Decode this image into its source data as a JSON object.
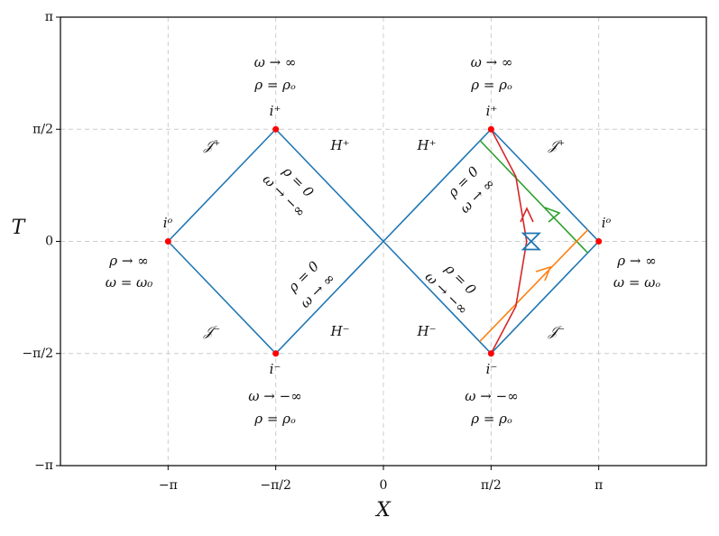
{
  "chart_data": {
    "type": "line",
    "xlabel": "X",
    "ylabel": "T",
    "xlim": [
      -4.712,
      4.712
    ],
    "ylim": [
      -3.1416,
      3.1416
    ],
    "xticks": [
      {
        "value": -3.1416,
        "label": "−π"
      },
      {
        "value": -1.5708,
        "label": "−π/2"
      },
      0,
      {
        "value": 1.5708,
        "label": "π/2"
      },
      {
        "value": 3.1416,
        "label": "π"
      }
    ],
    "yticks": [
      {
        "value": -3.1416,
        "label": "−π"
      },
      {
        "value": -1.5708,
        "label": "−π/2"
      },
      0,
      {
        "value": 1.5708,
        "label": "π/2"
      },
      {
        "value": 3.1416,
        "label": "π"
      }
    ],
    "grid": true,
    "series": [
      {
        "color": "#1f77b4",
        "x": [
          -3.1416,
          -1.5708,
          0,
          -1.5708,
          -3.1416
        ],
        "y": [
          0,
          1.5708,
          0,
          -1.5708,
          0
        ]
      },
      {
        "color": "#1f77b4",
        "x": [
          0,
          1.5708,
          3.1416,
          1.5708,
          0
        ],
        "y": [
          0,
          1.5708,
          0,
          -1.5708,
          0
        ]
      },
      {
        "color": "#2ca02c",
        "x": [
          1.406,
          2.984
        ],
        "y": [
          1.416,
          -0.164
        ]
      },
      {
        "color": "#ff7f0e",
        "x": [
          1.406,
          2.984
        ],
        "y": [
          -1.403,
          0.164
        ]
      },
      {
        "color": "#d62728",
        "x": [
          1.5708,
          1.932,
          2.09,
          1.932,
          1.5708
        ],
        "y": [
          1.5708,
          0.91,
          0,
          -0.91,
          -1.5708
        ]
      }
    ],
    "points": {
      "color": "#ff0000",
      "x": [
        -3.1416,
        -1.5708,
        -1.5708,
        1.5708,
        1.5708,
        3.1416
      ],
      "y": [
        0,
        1.5708,
        -1.5708,
        1.5708,
        -1.5708,
        0
      ]
    },
    "marker": {
      "color": "#1f77b4",
      "x": [
        2.156
      ],
      "y": [
        0
      ]
    },
    "annotations": [
      "ω → ∞",
      "ρ = ρₒ",
      "i⁺",
      "𝒥⁺",
      "H⁺",
      "ρ = 0",
      "ω → −∞",
      "iᵒ",
      "ρ → ∞",
      "ω = ω₀",
      "ρ = 0",
      "ω → ∞",
      "𝒥⁻",
      "H⁻",
      "i⁻",
      "ω → −∞",
      "ρ = ρₒ",
      "ω → ∞",
      "ρ = ρₒ",
      "i⁺",
      "H⁺",
      "𝒥⁺",
      "ρ = 0",
      "ω → ∞",
      "iᵒ",
      "ρ → ∞",
      "ω = ωₒ",
      "ρ = 0",
      "ω → −∞",
      "H⁻",
      "𝒥⁻",
      "i⁻",
      "ω → −∞",
      "ρ = ρₒ"
    ]
  }
}
